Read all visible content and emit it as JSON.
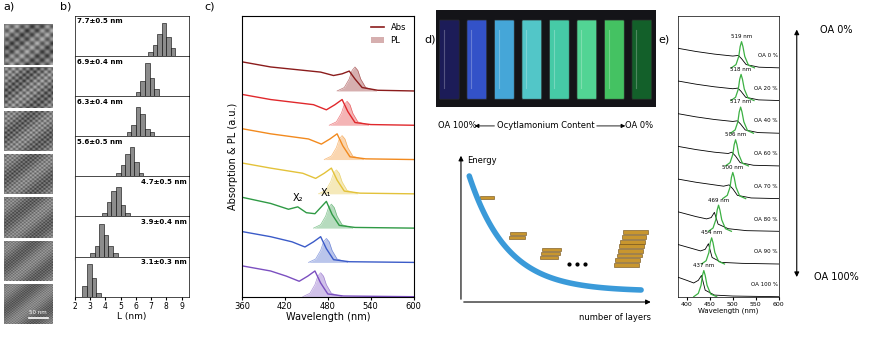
{
  "panel_labels": [
    "a)",
    "b)",
    "c)",
    "d)",
    "e)"
  ],
  "tem_images": {
    "scale_bar": "50 nm"
  },
  "chart_data": [
    {
      "type": "histogram",
      "xlabel": "L (nm)",
      "xlim": [
        2,
        9.5
      ],
      "xticks": [
        2,
        3,
        4,
        5,
        6,
        7,
        8,
        9
      ],
      "ylim": [
        0,
        11
      ],
      "tick_labels": "x",
      "color": "#8c8c8c",
      "series": [
        {
          "name": "7.7±0.5 nm",
          "bins": [
            6.8,
            7.1,
            7.4,
            7.7,
            8.0,
            8.3,
            8.6
          ],
          "counts": [
            1,
            3,
            6,
            9,
            5,
            2
          ]
        },
        {
          "name": "6.9±0.4 nm",
          "bins": [
            6.0,
            6.3,
            6.6,
            6.9,
            7.2,
            7.5
          ],
          "counts": [
            1,
            4,
            9,
            5,
            2
          ]
        },
        {
          "name": "6.3±0.4 nm",
          "bins": [
            5.4,
            5.7,
            6.0,
            6.3,
            6.6,
            6.9,
            7.2
          ],
          "counts": [
            1,
            3,
            8,
            6,
            2,
            1
          ]
        },
        {
          "name": "5.6±0.5 nm",
          "bins": [
            4.7,
            5.0,
            5.3,
            5.6,
            5.9,
            6.2,
            6.5
          ],
          "counts": [
            1,
            3,
            6,
            8,
            4,
            1
          ]
        },
        {
          "name": "4.7±0.5 nm",
          "bins": [
            3.8,
            4.1,
            4.4,
            4.7,
            5.0,
            5.3,
            5.6
          ],
          "counts": [
            1,
            4,
            7,
            8,
            3,
            1
          ]
        },
        {
          "name": "3.9±0.4 nm",
          "bins": [
            3.0,
            3.3,
            3.6,
            3.9,
            4.2,
            4.5,
            4.8
          ],
          "counts": [
            1,
            3,
            9,
            6,
            3,
            1
          ]
        },
        {
          "name": "3.1±0.3 nm",
          "bins": [
            2.5,
            2.8,
            3.1,
            3.4,
            3.7
          ],
          "counts": [
            3,
            9,
            5,
            1
          ]
        }
      ]
    },
    {
      "type": "line",
      "ylabel": "Absorption & PL (a.u.)",
      "xlabel": "Wavelength (nm)",
      "xlim": [
        360,
        600
      ],
      "xticks": [
        360,
        420,
        480,
        540,
        600
      ],
      "ylim": [
        0,
        8.2
      ],
      "tick_labels": "x",
      "legend": "upper right",
      "legend_labels": [
        "Abs",
        "PL"
      ],
      "series": [
        {
          "color": "#7b4fc0",
          "abs_x": [
            360,
            400,
            422,
            440,
            452,
            462,
            470,
            480,
            502,
            600
          ],
          "abs_y": [
            0.9,
            0.75,
            0.6,
            0.45,
            0.6,
            0.75,
            0.4,
            0.08,
            0.02,
            0.0
          ],
          "pl_x": [
            445,
            455,
            462,
            466,
            470,
            474,
            478,
            485,
            500
          ],
          "pl_y": [
            0,
            0.1,
            0.35,
            0.6,
            0.7,
            0.6,
            0.35,
            0.1,
            0
          ]
        },
        {
          "color": "#3b5bc8",
          "abs_x": [
            360,
            400,
            430,
            448,
            460,
            470,
            478,
            488,
            510,
            600
          ],
          "abs_y": [
            0.9,
            0.75,
            0.6,
            0.45,
            0.6,
            0.75,
            0.4,
            0.08,
            0.02,
            0.0
          ],
          "pl_x": [
            453,
            463,
            470,
            474,
            478,
            482,
            486,
            493,
            508
          ],
          "pl_y": [
            0,
            0.1,
            0.35,
            0.6,
            0.7,
            0.6,
            0.35,
            0.1,
            0
          ]
        },
        {
          "color": "#2f9a45",
          "abs_x": [
            360,
            400,
            425,
            438,
            450,
            462,
            470,
            478,
            486,
            496,
            518,
            600
          ],
          "abs_y": [
            0.9,
            0.72,
            0.55,
            0.62,
            0.45,
            0.42,
            0.6,
            0.78,
            0.4,
            0.08,
            0.02,
            0.0
          ],
          "pl_x": [
            460,
            470,
            477,
            481,
            485,
            489,
            493,
            500,
            515
          ],
          "pl_y": [
            0,
            0.1,
            0.35,
            0.6,
            0.7,
            0.6,
            0.35,
            0.1,
            0
          ],
          "annotations": [
            {
              "text": "X₂",
              "x": 438
            },
            {
              "text": "X₁",
              "x": 478
            }
          ]
        },
        {
          "color": "#e3c23a",
          "abs_x": [
            360,
            400,
            445,
            463,
            475,
            485,
            493,
            503,
            525,
            600
          ],
          "abs_y": [
            0.9,
            0.75,
            0.6,
            0.45,
            0.6,
            0.75,
            0.4,
            0.08,
            0.02,
            0.0
          ],
          "pl_x": [
            467,
            477,
            484,
            488,
            492,
            496,
            500,
            507,
            522
          ],
          "pl_y": [
            0,
            0.1,
            0.35,
            0.6,
            0.7,
            0.6,
            0.35,
            0.1,
            0
          ]
        },
        {
          "color": "#f28a1e",
          "abs_x": [
            360,
            400,
            453,
            471,
            483,
            493,
            501,
            511,
            533,
            600
          ],
          "abs_y": [
            0.9,
            0.75,
            0.6,
            0.45,
            0.6,
            0.75,
            0.4,
            0.08,
            0.02,
            0.0
          ],
          "pl_x": [
            475,
            485,
            492,
            496,
            500,
            504,
            508,
            515,
            530
          ],
          "pl_y": [
            0,
            0.1,
            0.35,
            0.6,
            0.7,
            0.6,
            0.35,
            0.1,
            0
          ]
        },
        {
          "color": "#e0282c",
          "abs_x": [
            360,
            400,
            460,
            478,
            490,
            500,
            508,
            518,
            540,
            600
          ],
          "abs_y": [
            0.9,
            0.75,
            0.6,
            0.45,
            0.6,
            0.75,
            0.4,
            0.08,
            0.02,
            0.0
          ],
          "pl_x": [
            482,
            492,
            499,
            503,
            507,
            511,
            515,
            522,
            537
          ],
          "pl_y": [
            0,
            0.1,
            0.35,
            0.6,
            0.7,
            0.6,
            0.35,
            0.1,
            0
          ]
        },
        {
          "color": "#8b1c1c",
          "abs_x": [
            360,
            400,
            470,
            488,
            500,
            510,
            518,
            528,
            550,
            600
          ],
          "abs_y": [
            0.85,
            0.7,
            0.55,
            0.45,
            0.5,
            0.58,
            0.35,
            0.1,
            0.02,
            0.0
          ],
          "pl_x": [
            493,
            503,
            510,
            514,
            518,
            522,
            526,
            533,
            548
          ],
          "pl_y": [
            0,
            0.1,
            0.35,
            0.6,
            0.7,
            0.6,
            0.35,
            0.1,
            0
          ]
        }
      ]
    },
    {
      "type": "line",
      "xlabel": "Wavelength (nm)",
      "xlim": [
        380,
        600
      ],
      "xticks": [
        400,
        450,
        500,
        550,
        600
      ],
      "ylim": [
        0,
        8.6
      ],
      "tick_labels": "x",
      "colors": {
        "abs": "#000000",
        "pl": "#3cb043"
      },
      "side_labels": {
        "top": "OA 0%",
        "bottom": "OA 100%"
      },
      "series": [
        {
          "name": "OA 100 %",
          "peak": 437,
          "peak_label": "437 nm",
          "abs_x": [
            380,
            400,
            415,
            425,
            432,
            440,
            460,
            500,
            600
          ],
          "abs_y": [
            0.6,
            0.5,
            0.42,
            0.5,
            0.65,
            0.2,
            0.05,
            0.02,
            0
          ],
          "pl_x": [
            415,
            425,
            431,
            434,
            437,
            440,
            444,
            452,
            465
          ],
          "pl_y": [
            0,
            0.1,
            0.35,
            0.65,
            0.8,
            0.65,
            0.35,
            0.08,
            0
          ]
        },
        {
          "name": "OA 90 %",
          "peak": 454,
          "peak_label": "454 nm",
          "abs_x": [
            380,
            410,
            430,
            440,
            447,
            455,
            475,
            520,
            600
          ],
          "abs_y": [
            0.6,
            0.48,
            0.4,
            0.45,
            0.62,
            0.2,
            0.05,
            0.02,
            0
          ],
          "pl_x": [
            432,
            442,
            448,
            451,
            454,
            457,
            461,
            469,
            482
          ],
          "pl_y": [
            0,
            0.1,
            0.35,
            0.65,
            0.8,
            0.65,
            0.35,
            0.08,
            0
          ]
        },
        {
          "name": "OA 80 %",
          "peak": 469,
          "peak_label": "469 nm",
          "abs_x": [
            380,
            420,
            443,
            453,
            460,
            468,
            490,
            530,
            600
          ],
          "abs_y": [
            0.6,
            0.45,
            0.38,
            0.42,
            0.58,
            0.22,
            0.08,
            0.02,
            0
          ],
          "pl_x": [
            447,
            457,
            463,
            466,
            469,
            472,
            476,
            484,
            497
          ],
          "pl_y": [
            0,
            0.1,
            0.35,
            0.65,
            0.8,
            0.65,
            0.35,
            0.08,
            0
          ]
        },
        {
          "name": "OA 70 %",
          "peak": 500,
          "peak_label": "500 nm",
          "abs_x": [
            380,
            420,
            460,
            480,
            492,
            500,
            510,
            540,
            600
          ],
          "abs_y": [
            0.6,
            0.5,
            0.42,
            0.38,
            0.42,
            0.3,
            0.1,
            0.02,
            0
          ],
          "pl_x": [
            478,
            488,
            494,
            497,
            500,
            503,
            507,
            515,
            528
          ],
          "pl_y": [
            0,
            0.1,
            0.35,
            0.65,
            0.8,
            0.65,
            0.35,
            0.08,
            0
          ]
        },
        {
          "name": "OA 60 %",
          "peak": 506,
          "peak_label": "506 nm",
          "abs_x": [
            380,
            420,
            460,
            490,
            498,
            506,
            516,
            545,
            600
          ],
          "abs_y": [
            0.6,
            0.5,
            0.42,
            0.38,
            0.42,
            0.3,
            0.1,
            0.02,
            0
          ],
          "pl_x": [
            484,
            494,
            500,
            503,
            506,
            509,
            513,
            521,
            534
          ],
          "pl_y": [
            0,
            0.1,
            0.35,
            0.65,
            0.8,
            0.65,
            0.35,
            0.08,
            0
          ]
        },
        {
          "name": "OA 40 %",
          "peak": 517,
          "peak_label": "517 nm",
          "abs_x": [
            380,
            420,
            460,
            500,
            510,
            517,
            527,
            555,
            600
          ],
          "abs_y": [
            0.6,
            0.5,
            0.42,
            0.36,
            0.38,
            0.28,
            0.1,
            0.02,
            0
          ],
          "pl_x": [
            495,
            505,
            511,
            514,
            517,
            520,
            524,
            532,
            545
          ],
          "pl_y": [
            0,
            0.1,
            0.35,
            0.65,
            0.8,
            0.65,
            0.35,
            0.08,
            0
          ]
        },
        {
          "name": "OA 20 %",
          "peak": 518,
          "peak_label": "518 nm",
          "abs_x": [
            380,
            420,
            460,
            500,
            511,
            518,
            528,
            556,
            600
          ],
          "abs_y": [
            0.6,
            0.5,
            0.42,
            0.36,
            0.38,
            0.28,
            0.1,
            0.02,
            0
          ],
          "pl_x": [
            496,
            506,
            512,
            515,
            518,
            521,
            525,
            533,
            546
          ],
          "pl_y": [
            0,
            0.1,
            0.35,
            0.65,
            0.8,
            0.65,
            0.35,
            0.08,
            0
          ]
        },
        {
          "name": "OA 0 %",
          "peak": 519,
          "peak_label": "519 nm",
          "abs_x": [
            380,
            420,
            460,
            500,
            512,
            519,
            529,
            557,
            600
          ],
          "abs_y": [
            0.6,
            0.5,
            0.42,
            0.36,
            0.38,
            0.28,
            0.1,
            0.02,
            0
          ],
          "pl_x": [
            497,
            507,
            513,
            516,
            519,
            522,
            526,
            534,
            547
          ],
          "pl_y": [
            0,
            0.1,
            0.35,
            0.65,
            0.8,
            0.65,
            0.35,
            0.08,
            0
          ]
        }
      ]
    }
  ],
  "vial_photo": {
    "left_label": "OA 100%",
    "center_label": "Ocytlamonium Content",
    "right_label": "OA 0%"
  },
  "energy_diagram": {
    "y_label": "Energy",
    "x_label": "number of layers"
  }
}
